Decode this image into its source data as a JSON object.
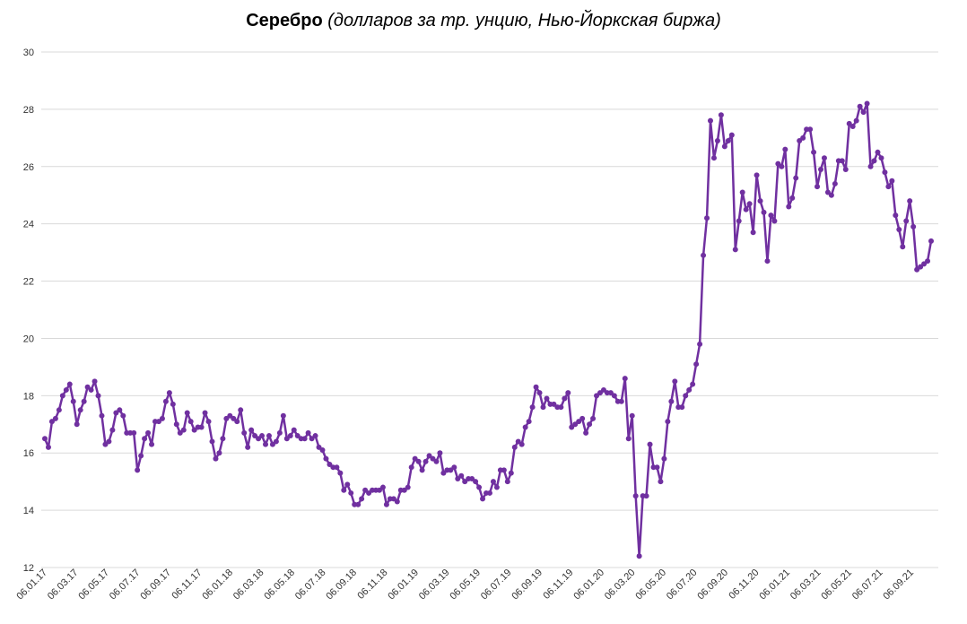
{
  "chart_data": {
    "type": "line",
    "title": "Серебро",
    "subtitle": "(долларов за тр. унцию, Нью-Йоркская биржа)",
    "xlabel": "",
    "ylabel": "",
    "ylim": [
      12,
      30
    ],
    "y_ticks": [
      "12",
      "14",
      "16",
      "18",
      "20",
      "22",
      "24",
      "26",
      "28",
      "30"
    ],
    "x_ticks": [
      "06.01.17",
      "06.03.17",
      "06.05.17",
      "06.07.17",
      "06.09.17",
      "06.11.17",
      "06.01.18",
      "06.03.18",
      "06.05.18",
      "06.07.18",
      "06.09.18",
      "06.11.18",
      "06.01.19",
      "06.03.19",
      "06.05.19",
      "06.07.19",
      "06.09.19",
      "06.11.19",
      "06.01.20",
      "06.03.20",
      "06.05.20",
      "06.07.20",
      "06.09.20",
      "06.11.20",
      "06.01.21",
      "06.03.21",
      "06.05.21",
      "06.07.21",
      "06.09.21"
    ],
    "grid": true,
    "color": "#7030a0",
    "series": [
      {
        "name": "",
        "values": [
          16.5,
          16.2,
          17.1,
          17.2,
          17.5,
          18.0,
          18.2,
          18.4,
          17.8,
          17.0,
          17.5,
          17.8,
          18.3,
          18.2,
          18.5,
          18.0,
          17.3,
          16.3,
          16.4,
          16.8,
          17.4,
          17.5,
          17.3,
          16.7,
          16.7,
          16.7,
          15.4,
          15.9,
          16.5,
          16.7,
          16.3,
          17.1,
          17.1,
          17.2,
          17.8,
          18.1,
          17.7,
          17.0,
          16.7,
          16.8,
          17.4,
          17.1,
          16.8,
          16.9,
          16.9,
          17.4,
          17.1,
          16.4,
          15.8,
          16.0,
          16.5,
          17.2,
          17.3,
          17.2,
          17.1,
          17.5,
          16.7,
          16.2,
          16.8,
          16.6,
          16.5,
          16.6,
          16.3,
          16.6,
          16.3,
          16.4,
          16.7,
          17.3,
          16.5,
          16.6,
          16.8,
          16.6,
          16.5,
          16.5,
          16.7,
          16.5,
          16.6,
          16.2,
          16.1,
          15.8,
          15.6,
          15.5,
          15.5,
          15.3,
          14.7,
          14.9,
          14.6,
          14.2,
          14.2,
          14.4,
          14.7,
          14.6,
          14.7,
          14.7,
          14.7,
          14.8,
          14.2,
          14.4,
          14.4,
          14.3,
          14.7,
          14.7,
          14.8,
          15.5,
          15.8,
          15.7,
          15.4,
          15.7,
          15.9,
          15.8,
          15.7,
          16.0,
          15.3,
          15.4,
          15.4,
          15.5,
          15.1,
          15.2,
          15.0,
          15.1,
          15.1,
          15.0,
          14.8,
          14.4,
          14.6,
          14.6,
          15.0,
          14.8,
          15.4,
          15.4,
          15.0,
          15.3,
          16.2,
          16.4,
          16.3,
          16.9,
          17.1,
          17.6,
          18.3,
          18.1,
          17.6,
          17.9,
          17.7,
          17.7,
          17.6,
          17.6,
          17.9,
          18.1,
          16.9,
          17.0,
          17.1,
          17.2,
          16.7,
          17.0,
          17.2,
          18.0,
          18.1,
          18.2,
          18.1,
          18.1,
          18.0,
          17.8,
          17.8,
          18.6,
          16.5,
          17.3,
          14.5,
          12.4,
          14.5,
          14.5,
          16.3,
          15.5,
          15.5,
          15.0,
          15.8,
          17.1,
          17.8,
          18.5,
          17.6,
          17.6,
          18.0,
          18.2,
          18.4,
          19.1,
          19.8,
          22.9,
          24.2,
          27.6,
          26.3,
          26.9,
          27.8,
          26.7,
          26.9,
          27.1,
          23.1,
          24.1,
          25.1,
          24.5,
          24.7,
          23.7,
          25.7,
          24.8,
          24.4,
          22.7,
          24.3,
          24.1,
          26.1,
          26.0,
          26.6,
          24.6,
          24.9,
          25.6,
          26.9,
          27.0,
          27.3,
          27.3,
          26.5,
          25.3,
          25.9,
          26.3,
          25.1,
          25.0,
          25.4,
          26.2,
          26.2,
          25.9,
          27.5,
          27.4,
          27.6,
          28.1,
          27.9,
          28.2,
          26.0,
          26.2,
          26.5,
          26.3,
          25.8,
          25.3,
          25.5,
          24.3,
          23.8,
          23.2,
          24.1,
          24.8,
          23.9,
          22.4,
          22.5,
          22.6,
          22.7,
          23.4
        ]
      }
    ]
  }
}
